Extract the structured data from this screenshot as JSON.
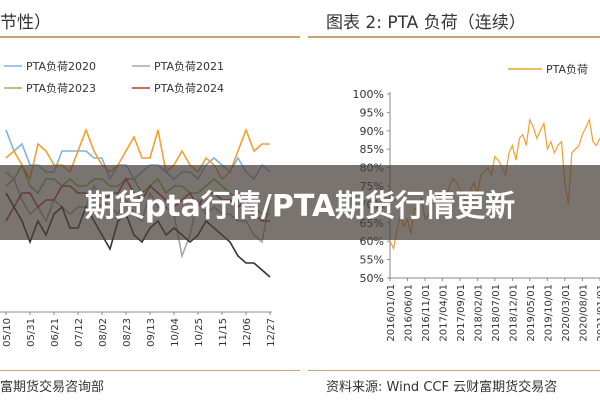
{
  "banner": {
    "text": "期货pta行情/PTA期货行情更新"
  },
  "left": {
    "title": "节性）",
    "source": "富期货交易咨询部",
    "chart_data": {
      "type": "line",
      "title": "节性）",
      "categories": [
        "05/10",
        "05/17",
        "05/24",
        "05/31",
        "06/07",
        "06/14",
        "06/21",
        "06/28",
        "07/05",
        "07/12",
        "07/19",
        "07/26",
        "08/02",
        "08/09",
        "08/16",
        "08/23",
        "08/30",
        "09/06",
        "09/13",
        "09/20",
        "09/27",
        "10/04",
        "10/11",
        "10/18",
        "10/25",
        "11/01",
        "11/08",
        "11/15",
        "11/22",
        "11/29",
        "12/06",
        "12/13",
        "12/20",
        "12/27"
      ],
      "xtick_labels": [
        "05/10",
        "05/31",
        "06/21",
        "07/12",
        "08/02",
        "08/23",
        "09/13",
        "10/04",
        "10/25",
        "11/15",
        "12/06",
        "12/27"
      ],
      "legend": [
        "PTA负荷2020",
        "PTA负荷2021",
        "PTA负荷2023",
        "PTA负荷2024"
      ],
      "series": [
        {
          "name": "PTA负荷2020",
          "color": "#7fb3e3",
          "values": [
            91,
            88,
            89,
            86,
            86,
            85,
            85,
            88,
            88,
            88,
            88,
            87,
            87,
            84,
            86,
            86,
            84,
            85,
            86,
            86,
            85,
            84,
            85,
            85,
            84,
            86,
            87,
            86,
            85,
            87,
            85,
            84,
            86,
            85
          ]
        },
        {
          "name": "PTA负荷2021",
          "color": "#a8a8a8",
          "values": [
            83,
            84,
            81,
            79,
            80,
            78,
            81,
            80,
            79,
            80,
            80,
            83,
            81,
            80,
            79,
            81,
            79,
            78,
            82,
            80,
            80,
            79,
            73,
            76,
            81,
            79,
            80,
            79,
            79,
            78,
            78,
            76,
            75,
            81
          ]
        },
        {
          "name": "PTA负荷2023",
          "color": "#8db85a",
          "values": [
            85,
            84,
            86,
            83,
            82,
            84,
            84,
            83,
            84,
            83,
            83,
            84,
            84,
            83,
            83,
            84,
            84,
            82,
            83,
            84,
            82,
            83,
            83,
            82,
            82,
            83,
            84,
            83,
            82,
            81,
            81,
            80,
            79,
            79
          ]
        },
        {
          "name": "PTA负荷2024",
          "color": "#c0392b",
          "values": [
            78,
            80,
            82,
            82,
            80,
            81,
            81,
            83,
            83,
            82,
            82,
            81,
            80,
            82,
            82,
            84,
            82,
            81,
            83,
            82,
            81,
            80,
            81,
            82,
            80,
            82,
            82,
            81,
            81,
            80,
            81,
            79,
            78,
            78
          ]
        },
        {
          "name": "",
          "color": "#f0a030",
          "values": [
            87,
            88,
            86,
            84,
            89,
            88,
            86,
            86,
            85,
            88,
            91,
            88,
            86,
            85,
            86,
            88,
            90,
            87,
            87,
            91,
            85,
            86,
            88,
            86,
            85,
            87,
            86,
            84,
            85,
            88,
            91,
            88,
            89,
            89
          ]
        },
        {
          "name": "",
          "color": "#333333",
          "values": [
            82,
            80,
            78,
            75,
            78,
            76,
            79,
            80,
            77,
            77,
            80,
            78,
            76,
            74,
            78,
            79,
            76,
            75,
            77,
            78,
            76,
            77,
            76,
            75,
            76,
            78,
            77,
            76,
            75,
            73,
            72,
            72,
            71,
            70
          ]
        }
      ]
    }
  },
  "right": {
    "title": "图表 2:  PTA 负荷（连续）",
    "source": "资料来源:  Wind CCF  云财富期货交易咨",
    "chart_data": {
      "type": "line",
      "title": "图表 2:  PTA 负荷（连续）",
      "legend": [
        "PTA负荷"
      ],
      "ylim": [
        50,
        100
      ],
      "yticks": [
        50,
        55,
        60,
        65,
        70,
        75,
        80,
        85,
        90,
        95,
        100
      ],
      "ytick_labels": [
        "50%",
        "55%",
        "60%",
        "65%",
        "70%",
        "75%",
        "80%",
        "85%",
        "90%",
        "95%",
        "100%"
      ],
      "xtick_labels": [
        "2016/01/01",
        "2016/06/01",
        "2016/11/01",
        "2017/04/01",
        "2017/09/01",
        "2018/02/01",
        "2018/07/01",
        "2018/12/01",
        "2019/05/01",
        "2019/10/01",
        "2020/03/01",
        "2020/08/01",
        "2021/01/01"
      ],
      "series": [
        {
          "name": "PTA负荷",
          "color": "#f0a030",
          "x": [
            "2016/01/01",
            "2016/02/01",
            "2016/03/01",
            "2016/04/01",
            "2016/05/01",
            "2016/06/01",
            "2016/07/01",
            "2016/08/01",
            "2016/09/01",
            "2016/10/01",
            "2016/11/01",
            "2016/12/01",
            "2017/01/01",
            "2017/02/01",
            "2017/03/01",
            "2017/04/01",
            "2017/05/01",
            "2017/06/01",
            "2017/07/01",
            "2017/08/01",
            "2017/09/01",
            "2017/10/01",
            "2017/11/01",
            "2017/12/01",
            "2018/01/01",
            "2018/02/01",
            "2018/03/01",
            "2018/04/01",
            "2018/05/01",
            "2018/06/01",
            "2018/07/01",
            "2018/08/01",
            "2018/09/01",
            "2018/10/01",
            "2018/11/01",
            "2018/12/01",
            "2019/01/01",
            "2019/02/01",
            "2019/03/01",
            "2019/04/01",
            "2019/05/01",
            "2019/06/01",
            "2019/07/01",
            "2019/08/01",
            "2019/09/01",
            "2019/10/01",
            "2019/11/01",
            "2019/12/01",
            "2020/01/01",
            "2020/02/01",
            "2020/03/01",
            "2020/04/01",
            "2020/05/01",
            "2020/06/01",
            "2020/07/01",
            "2020/08/01",
            "2020/09/01",
            "2020/10/01",
            "2020/11/01",
            "2020/12/01",
            "2021/01/01"
          ],
          "values": [
            60,
            58,
            63,
            67,
            64,
            66,
            62,
            69,
            68,
            72,
            66,
            67,
            70,
            71,
            73,
            68,
            72,
            75,
            77,
            76,
            74,
            73,
            70,
            74,
            76,
            73,
            78,
            79,
            80,
            78,
            83,
            82,
            80,
            78,
            84,
            86,
            82,
            88,
            89,
            86,
            93,
            91,
            88,
            90,
            92,
            85,
            87,
            84,
            86,
            87,
            76,
            70,
            84,
            85,
            86,
            89,
            91,
            93,
            87,
            86,
            88
          ]
        }
      ]
    }
  }
}
